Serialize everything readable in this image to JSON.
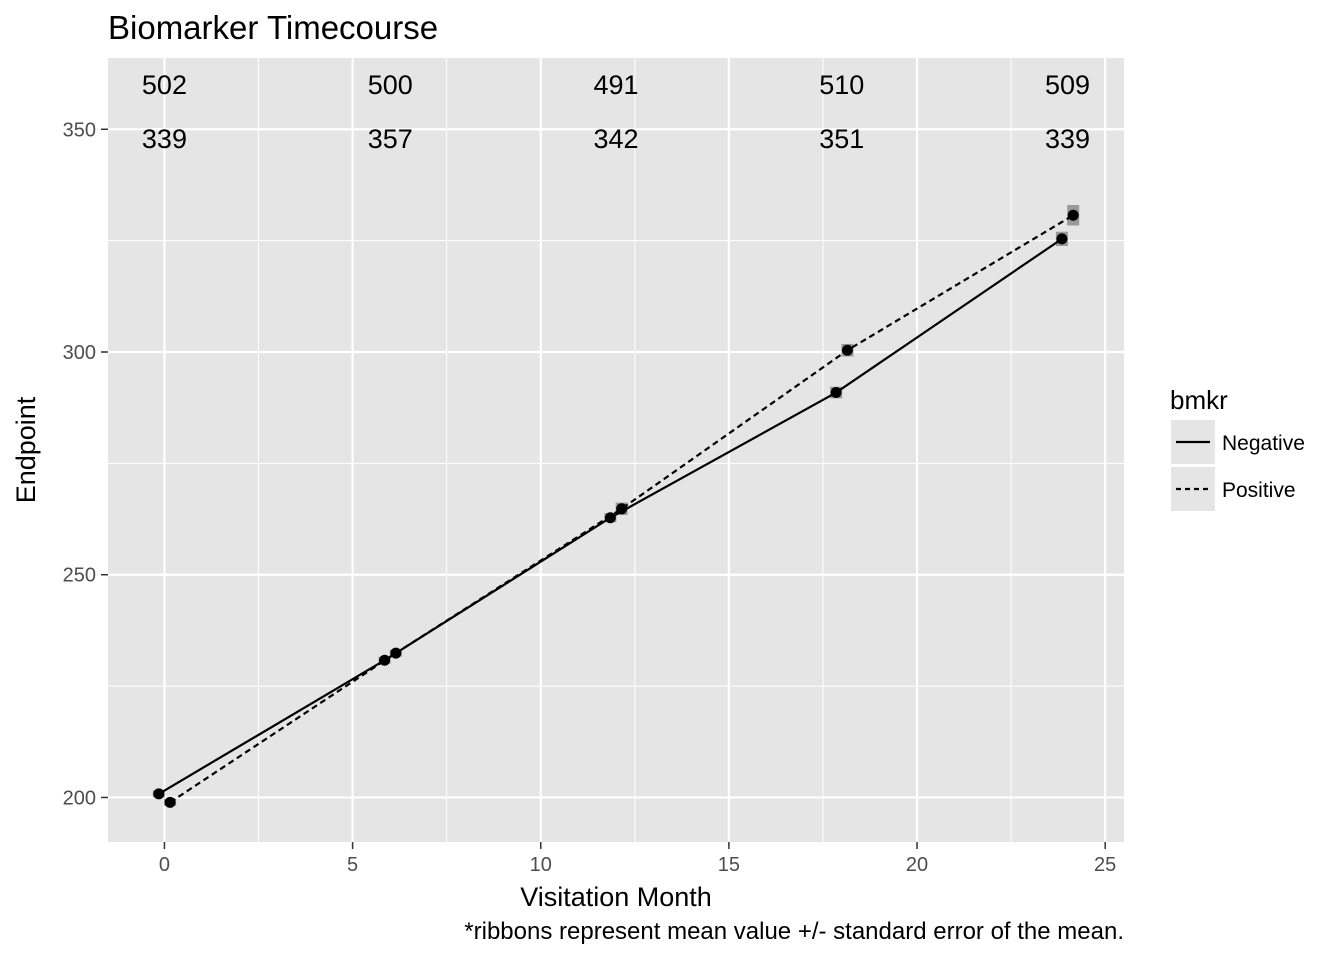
{
  "chart_data": {
    "type": "line",
    "title": "Biomarker Timecourse",
    "xlabel": "Visitation Month",
    "ylabel": "Endpoint",
    "caption": "*ribbons represent mean value +/- standard error of the mean.",
    "xlim": [
      -1.5,
      25.5
    ],
    "ylim": [
      190,
      366
    ],
    "x_ticks": [
      0,
      5,
      10,
      15,
      20,
      25
    ],
    "y_ticks": [
      200,
      250,
      300,
      350
    ],
    "grid": true,
    "legend": {
      "title": "bmkr",
      "position": "right",
      "entries": [
        {
          "label": "Negative",
          "linetype": "solid"
        },
        {
          "label": "Positive",
          "linetype": "dashed"
        }
      ]
    },
    "series": [
      {
        "name": "Negative",
        "linetype": "solid",
        "x": [
          -0.15,
          5.85,
          11.85,
          17.85,
          23.85
        ],
        "y": [
          200.8,
          230.8,
          262.8,
          290.9,
          325.4
        ],
        "se": [
          0.8,
          0.8,
          1.0,
          1.3,
          1.6
        ]
      },
      {
        "name": "Positive",
        "linetype": "dashed",
        "x": [
          0.15,
          6.15,
          12.15,
          18.15,
          24.15
        ],
        "y": [
          198.9,
          232.4,
          264.8,
          300.4,
          330.7
        ],
        "se": [
          0.8,
          0.8,
          1.4,
          1.4,
          2.3
        ]
      }
    ],
    "count_rows": [
      {
        "x": [
          0,
          6,
          12,
          18,
          24
        ],
        "values": [
          "502",
          "500",
          "491",
          "510",
          "509"
        ]
      },
      {
        "x": [
          0,
          6,
          12,
          18,
          24
        ],
        "values": [
          "339",
          "357",
          "342",
          "351",
          "339"
        ]
      }
    ],
    "colors": {
      "panel_background": "#e5e5e5",
      "grid": "#ffffff",
      "line": "#000000",
      "ribbon": "#7f7f7f"
    }
  }
}
